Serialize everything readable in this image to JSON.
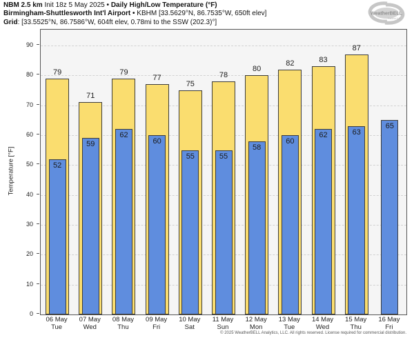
{
  "header": {
    "line1": {
      "model": "NBM 2.5 km",
      "init": " Init 18z 5 May 2025 ",
      "sep": "• ",
      "product": "Daily High/Low Temperature (°F)"
    },
    "line2": {
      "station": "Birmingham-Shuttlesworth Int'l Airport",
      "sep": " • ",
      "details": "KBHM [33.5629°N, 86.7535°W, 650ft elev]"
    },
    "line3": {
      "label": "Grid",
      "details": ": [33.5525°N, 86.7586°W, 604ft elev, 0.78mi to the SSW (202.3)°]"
    }
  },
  "logo": {
    "name": "WeatherBELL",
    "tagline": "Analytics LLC"
  },
  "chart_data": {
    "type": "bar",
    "title": "NBM 2.5 km Daily High/Low Temperature (°F) — Birmingham-Shuttlesworth Int'l Airport (KBHM)",
    "ylabel": "Temperature [°F]",
    "ylim": [
      0,
      95.3
    ],
    "yticks": [
      0,
      10,
      20,
      30,
      40,
      50,
      60,
      70,
      80,
      90
    ],
    "grid": "horizontal-dashed",
    "legend": "none",
    "categories": [
      {
        "date": "06 May",
        "day": "Tue"
      },
      {
        "date": "07 May",
        "day": "Wed"
      },
      {
        "date": "08 May",
        "day": "Thu"
      },
      {
        "date": "09 May",
        "day": "Fri"
      },
      {
        "date": "10 May",
        "day": "Sat"
      },
      {
        "date": "11 May",
        "day": "Sun"
      },
      {
        "date": "12 May",
        "day": "Mon"
      },
      {
        "date": "13 May",
        "day": "Tue"
      },
      {
        "date": "14 May",
        "day": "Wed"
      },
      {
        "date": "15 May",
        "day": "Thu"
      },
      {
        "date": "16 May",
        "day": "Fri"
      }
    ],
    "series": [
      {
        "name": "High",
        "color": "#fadd6f",
        "values": [
          79,
          71,
          79,
          77,
          75,
          78,
          80,
          82,
          83,
          87,
          null
        ]
      },
      {
        "name": "Low",
        "color": "#5f8dde",
        "values": [
          52,
          59,
          62,
          60,
          55,
          55,
          58,
          60,
          62,
          63,
          65
        ]
      }
    ]
  },
  "footer": {
    "copyright": "© 2025 WeatherBELL Analytics, LLC. All rights reserved. License required for commercial distribution."
  }
}
